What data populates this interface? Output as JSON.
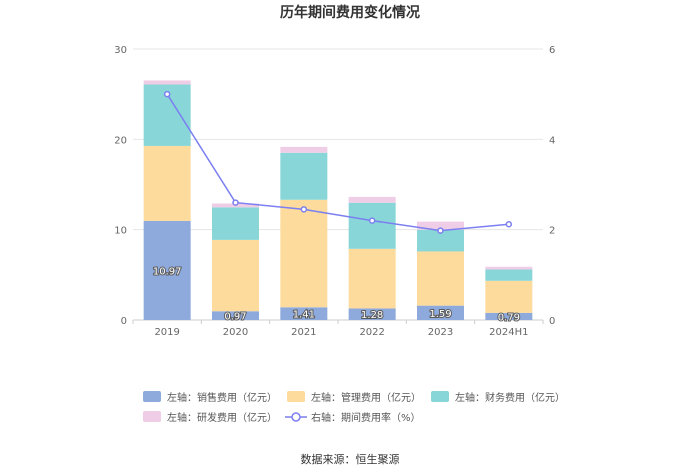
{
  "chart_data": {
    "type": "bar",
    "title": "历年期间费用变化情况",
    "categories": [
      "2019",
      "2020",
      "2021",
      "2022",
      "2023",
      "2024H1"
    ],
    "left_axis": {
      "ylim": [
        0,
        30
      ],
      "ticks": [
        "0",
        "10",
        "20",
        "30"
      ]
    },
    "right_axis": {
      "ylim": [
        0,
        6
      ],
      "ticks": [
        "0",
        "2",
        "4",
        "6"
      ]
    },
    "grid": true,
    "stacked": true,
    "series": [
      {
        "name": "左轴：销售费用（亿元）",
        "axis": "left",
        "kind": "bar",
        "color": "#8eaadc",
        "values": [
          10.97,
          0.97,
          1.41,
          1.28,
          1.59,
          0.79
        ],
        "labels": [
          "10.97",
          "0.97",
          "1.41",
          "1.28",
          "1.59",
          "0.79"
        ]
      },
      {
        "name": "左轴：管理费用（亿元）",
        "axis": "left",
        "kind": "bar",
        "color": "#fddb9c",
        "values": [
          8.3,
          7.9,
          11.9,
          6.6,
          6.0,
          3.55
        ]
      },
      {
        "name": "左轴：财务费用（亿元）",
        "axis": "left",
        "kind": "bar",
        "color": "#88d6d8",
        "values": [
          6.8,
          3.6,
          5.2,
          5.1,
          2.4,
          1.25
        ]
      },
      {
        "name": "左轴：研发费用（亿元）",
        "axis": "left",
        "kind": "bar",
        "color": "#efcde6",
        "values": [
          0.45,
          0.43,
          0.65,
          0.65,
          0.9,
          0.3
        ]
      },
      {
        "name": "右轴：期间费用率（%）",
        "axis": "right",
        "kind": "line",
        "color": "#7b7ff0",
        "values": [
          5.0,
          2.6,
          2.45,
          2.2,
          1.98,
          2.12
        ]
      }
    ],
    "legend_placement": "bottom"
  },
  "source_text": "数据来源：恒生聚源"
}
